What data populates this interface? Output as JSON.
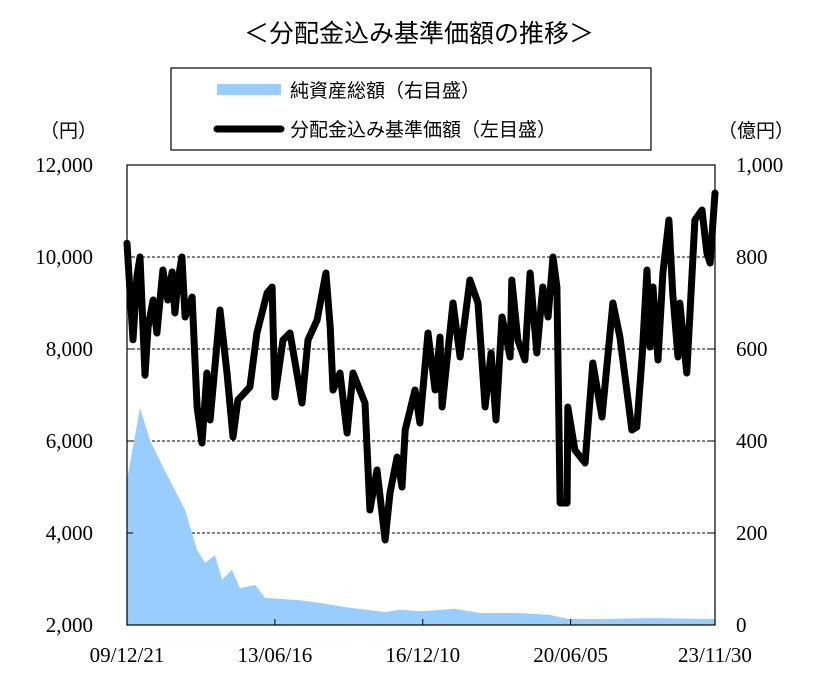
{
  "chart_data": {
    "type": "line",
    "title": "＜分配金込み基準価額の推移＞",
    "x_unit": "months since 09/12/21",
    "xlim": [
      0,
      167
    ],
    "x_ticks": [
      {
        "x": 0,
        "label": "09/12/21"
      },
      {
        "x": 42,
        "label": "13/06/16"
      },
      {
        "x": 84,
        "label": "16/12/10"
      },
      {
        "x": 126,
        "label": "20/06/05"
      },
      {
        "x": 167,
        "label": "23/11/30"
      }
    ],
    "left_axis": {
      "unit": "（円）",
      "ylim": [
        2000,
        12000
      ],
      "ticks": [
        "2,000",
        "4,000",
        "6,000",
        "8,000",
        "10,000",
        "12,000"
      ],
      "tick_values": [
        2000,
        4000,
        6000,
        8000,
        10000,
        12000
      ]
    },
    "right_axis": {
      "unit": "（億円）",
      "ylim": [
        0,
        1000
      ],
      "ticks": [
        "0",
        "200",
        "400",
        "600",
        "800",
        "1,000"
      ],
      "tick_values": [
        0,
        200,
        400,
        600,
        800,
        1000
      ]
    },
    "grid": "horizontal dashed",
    "legend_placement": "top-center",
    "series": [
      {
        "name": "純資産総額（右目盛）",
        "kind": "area",
        "axis": "right",
        "color": "#99ccff",
        "x": [
          0,
          3.7,
          6.5,
          10.8,
          16.5,
          19.9,
          22.2,
          25,
          27,
          29.8,
          32.1,
          36.4,
          39.2,
          49.1,
          54.8,
          61.9,
          73.3,
          77.5,
          83.2,
          93.2,
          100.3,
          111.6,
          120.1,
          125.2,
          134.3,
          148.5,
          167
        ],
        "y": [
          315,
          472,
          402,
          335,
          250,
          163,
          135,
          152,
          98,
          120,
          80,
          87,
          59,
          54,
          48,
          39,
          28,
          33,
          30,
          35,
          26,
          26,
          22,
          13,
          13,
          15,
          13
        ]
      },
      {
        "name": "分配金込み基準価額（左目盛）",
        "kind": "line",
        "axis": "left",
        "color": "#000000",
        "x": [
          0,
          1.7,
          2.8,
          3.7,
          5.1,
          6,
          7.4,
          8.5,
          10.2,
          11.6,
          12.8,
          13.6,
          14.5,
          15.6,
          16.5,
          18.5,
          19.9,
          21.3,
          22.7,
          23.6,
          26.4,
          28.4,
          30.1,
          31.5,
          34.9,
          36.9,
          39.8,
          41.2,
          42,
          44.3,
          46.3,
          49.7,
          51.4,
          54,
          56.5,
          57.7,
          58.5,
          60.5,
          62.5,
          64.2,
          67.6,
          69,
          71,
          73.3,
          74.7,
          76.7,
          78.1,
          79,
          81.8,
          83.2,
          85.5,
          87.5,
          88.9,
          89.5,
          92.6,
          94.6,
          97.4,
          99.7,
          101.7,
          103.4,
          104.8,
          106.5,
          108.8,
          109.3,
          111,
          113,
          114.5,
          116.4,
          118.1,
          119.6,
          121,
          122.1,
          123,
          125,
          125.2,
          127.2,
          130.1,
          132.3,
          134.9,
          138,
          140,
          143.4,
          144.8,
          146.3,
          147.7,
          148.5,
          149.4,
          150.8,
          152.2,
          153.9,
          155,
          156.5,
          157,
          159,
          161.3,
          163.3,
          164.7,
          165.6,
          167
        ],
        "y": [
          10300,
          8200,
          9570,
          10000,
          7430,
          8480,
          9065,
          8348,
          9717,
          9065,
          9674,
          8783,
          9500,
          10000,
          8696,
          9130,
          6739,
          5957,
          7478,
          6457,
          8848,
          7478,
          6087,
          6891,
          7174,
          8348,
          9217,
          9348,
          6957,
          8196,
          8348,
          6826,
          8196,
          8630,
          9652,
          8478,
          7109,
          7478,
          6174,
          7478,
          6826,
          4500,
          5370,
          3848,
          4870,
          5652,
          5000,
          6239,
          7109,
          6391,
          8348,
          7109,
          8261,
          6739,
          9000,
          7826,
          9500,
          9000,
          6739,
          7913,
          6457,
          8696,
          7826,
          9500,
          8196,
          7761,
          9652,
          7913,
          9348,
          8696,
          10000,
          9348,
          4652,
          4652,
          6739,
          5804,
          5522,
          7696,
          6522,
          9000,
          8261,
          6239,
          6304,
          7826,
          9717,
          8043,
          9348,
          7761,
          9652,
          10804,
          9217,
          7826,
          9000,
          7478,
          10804,
          11022,
          10087,
          9870,
          11391
        ]
      }
    ]
  }
}
